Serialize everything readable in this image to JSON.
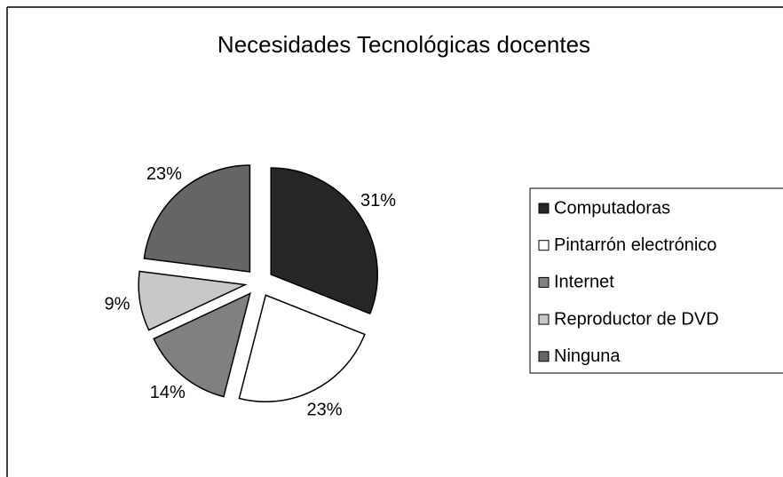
{
  "chart_data": {
    "type": "pie",
    "title": "Necesidades Tecnológicas docentes",
    "categories": [
      "Computadoras",
      "Pintarrón electrónico",
      "Internet",
      "Reproductor de DVD",
      "Ninguna"
    ],
    "values": [
      31,
      23,
      14,
      9,
      23
    ],
    "value_labels": [
      "31%",
      "23%",
      "14%",
      "9%",
      "23%"
    ],
    "colors": [
      "#262626",
      "#ffffff",
      "#808080",
      "#c8c8c8",
      "#666666"
    ],
    "legend": "right"
  }
}
